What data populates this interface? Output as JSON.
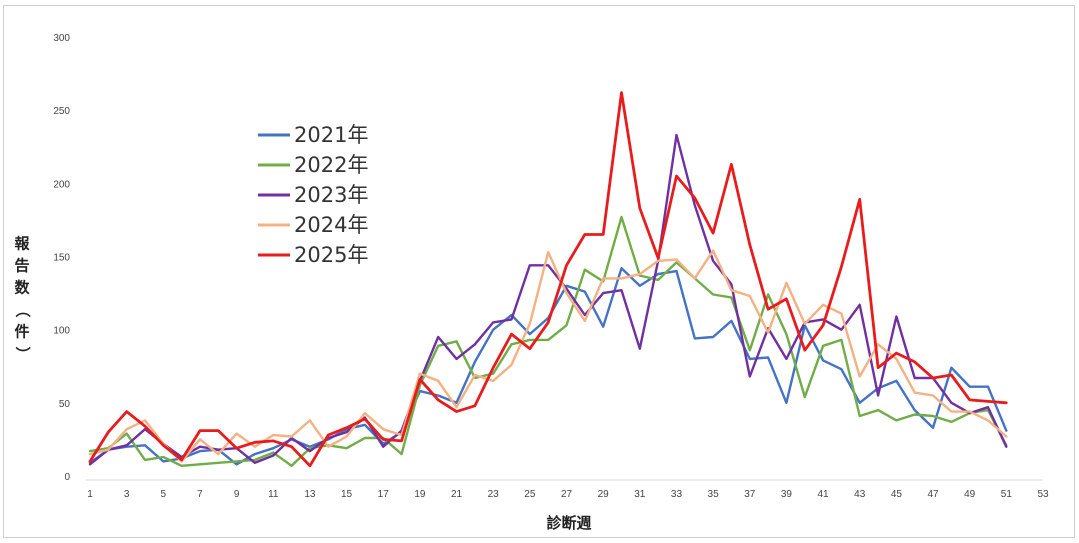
{
  "chart_data": {
    "type": "line",
    "xlabel": "診断週",
    "ylabel": "報告数（件）",
    "ylim": [
      0,
      300
    ],
    "y_ticks": [
      "0",
      "50",
      "100",
      "150",
      "200",
      "250",
      "300"
    ],
    "x_ticks": [
      "1",
      "3",
      "5",
      "7",
      "9",
      "11",
      "13",
      "15",
      "17",
      "19",
      "21",
      "23",
      "25",
      "27",
      "29",
      "31",
      "33",
      "35",
      "37",
      "39",
      "41",
      "43",
      "45",
      "47",
      "49",
      "51",
      "53"
    ],
    "xlim": [
      1,
      53
    ],
    "grid": false,
    "legend_position": "left",
    "series": [
      {
        "name": "2021年",
        "color": "#4472c4",
        "values": [
          9,
          18,
          20,
          21,
          10,
          12,
          17,
          18,
          8,
          15,
          19,
          25,
          20,
          25,
          32,
          35,
          22,
          30,
          58,
          55,
          50,
          78,
          100,
          110,
          97,
          108,
          130,
          126,
          102,
          142,
          130,
          138,
          140,
          94,
          95,
          106,
          80,
          81,
          50,
          103,
          79,
          73,
          50,
          60,
          65,
          45,
          33,
          74,
          61,
          61,
          31
        ]
      },
      {
        "name": "2022年",
        "color": "#70ad47",
        "values": [
          17,
          19,
          29,
          11,
          13,
          7,
          8,
          9,
          10,
          11,
          16,
          7,
          19,
          21,
          19,
          26,
          26,
          15,
          62,
          89,
          92,
          67,
          70,
          90,
          93,
          93,
          103,
          141,
          133,
          177,
          137,
          134,
          146,
          135,
          124,
          122,
          86,
          124,
          97,
          54,
          89,
          93,
          41,
          45,
          38,
          42,
          41,
          37,
          43,
          45,
          21
        ]
      },
      {
        "name": "2023年",
        "color": "#7030a0",
        "values": [
          8,
          18,
          21,
          32,
          22,
          13,
          20,
          18,
          19,
          9,
          14,
          26,
          17,
          26,
          30,
          40,
          20,
          31,
          65,
          95,
          80,
          90,
          105,
          107,
          144,
          144,
          128,
          110,
          125,
          127,
          87,
          147,
          233,
          185,
          147,
          131,
          68,
          101,
          80,
          105,
          107,
          100,
          117,
          55,
          109,
          67,
          67,
          50,
          43,
          47,
          20
        ]
      },
      {
        "name": "2024年",
        "color": "#f4b183",
        "values": [
          15,
          18,
          32,
          38,
          22,
          10,
          25,
          15,
          29,
          20,
          28,
          27,
          38,
          20,
          27,
          43,
          32,
          28,
          70,
          65,
          47,
          69,
          65,
          76,
          104,
          153,
          125,
          106,
          135,
          135,
          138,
          147,
          148,
          135,
          154,
          127,
          123,
          98,
          132,
          104,
          117,
          111,
          68,
          90,
          80,
          57,
          55,
          44,
          44,
          38,
          27
        ]
      },
      {
        "name": "2025年",
        "color": "#e81c1c",
        "values": [
          10,
          30,
          44,
          34,
          21,
          11,
          31,
          31,
          19,
          23,
          24,
          20,
          7,
          28,
          33,
          39,
          25,
          24,
          66,
          52,
          44,
          48,
          74,
          97,
          87,
          105,
          144,
          165,
          165,
          262,
          183,
          149,
          205,
          190,
          166,
          213,
          158,
          114,
          121,
          86,
          103,
          143,
          189,
          74,
          84,
          78,
          67,
          69,
          52,
          51,
          50
        ]
      }
    ]
  }
}
